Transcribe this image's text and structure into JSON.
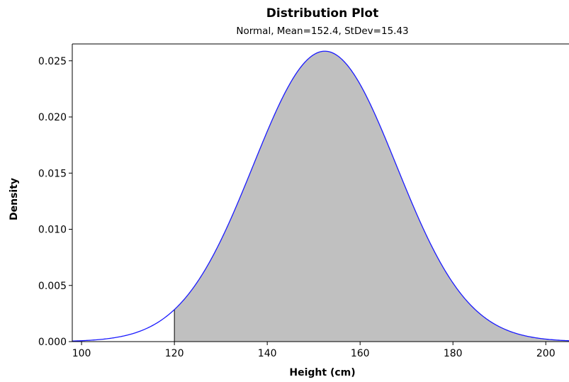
{
  "chart_data": {
    "type": "area",
    "title": "Distribution Plot",
    "subtitle": "Normal, Mean=152.4, StDev=15.43",
    "xlabel": "Height (cm)",
    "ylabel": "Density",
    "distribution": "Normal",
    "mean": 152.4,
    "stdev": 15.43,
    "xlim": [
      98,
      205
    ],
    "ylim": [
      0,
      0.0265
    ],
    "x_ticks": [
      "100",
      "120",
      "140",
      "160",
      "180",
      "200"
    ],
    "y_ticks": [
      "0.000",
      "0.005",
      "0.010",
      "0.015",
      "0.020",
      "0.025"
    ],
    "shaded_region": {
      "from": 120,
      "to": 205
    },
    "grid": false,
    "colors": {
      "curve": "#1a1aff",
      "fill": "#c0c0c0",
      "axis": "#000000"
    }
  }
}
